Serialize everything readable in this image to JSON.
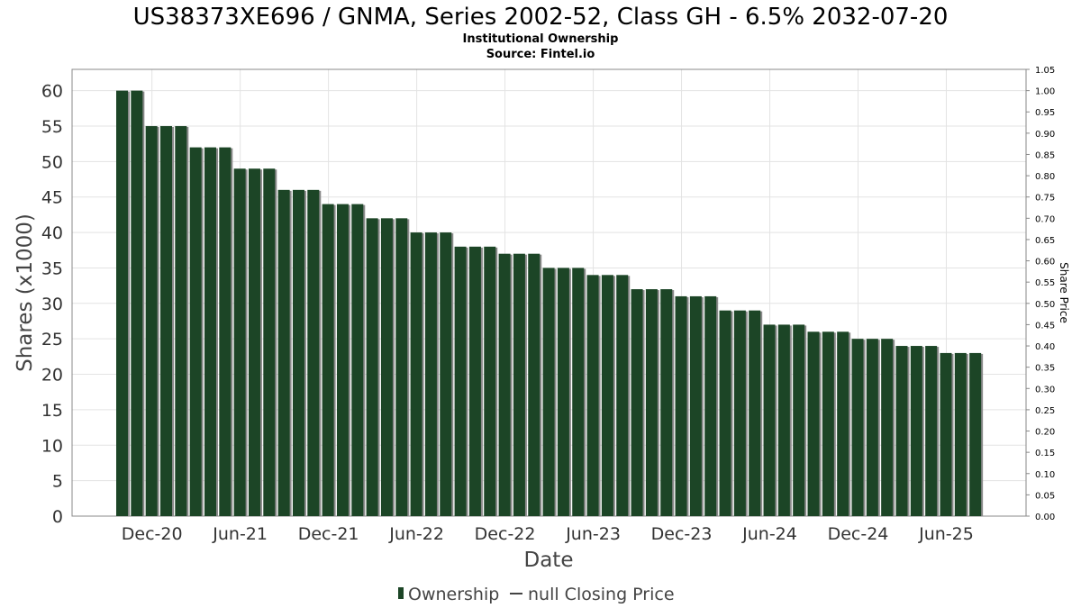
{
  "title": "US38373XE696 / GNMA, Series 2002-52, Class GH - 6.5% 2032-07-20",
  "subtitle": "Institutional Ownership",
  "source": "Source: Fintel.io",
  "colors": {
    "bar": "#1c4526",
    "bar_shadow": "#8a8a8a",
    "grid": "#e3e3e3",
    "frame": "#888888"
  },
  "chart_data": {
    "type": "bar",
    "xlabel": "Date",
    "ylabel": "Shares (x1000)",
    "y2label": "Share Price",
    "ylim": [
      0,
      63
    ],
    "y2lim": [
      0,
      1.05
    ],
    "yticks": [
      0,
      5,
      10,
      15,
      20,
      25,
      30,
      35,
      40,
      45,
      50,
      55,
      60
    ],
    "y2ticks": [
      "0.00",
      "0.05",
      "0.10",
      "0.15",
      "0.20",
      "0.25",
      "0.30",
      "0.35",
      "0.40",
      "0.45",
      "0.50",
      "0.55",
      "0.60",
      "0.65",
      "0.70",
      "0.75",
      "0.80",
      "0.85",
      "0.90",
      "0.95",
      "1.00",
      "1.05"
    ],
    "xtick_labels": [
      "Dec-20",
      "Jun-21",
      "Dec-21",
      "Jun-22",
      "Dec-22",
      "Jun-23",
      "Dec-23",
      "Jun-24",
      "Dec-24",
      "Jun-25"
    ],
    "grid": true,
    "legend_position": "bottom",
    "series": [
      {
        "name": "Ownership",
        "values": [
          60,
          60,
          55,
          55,
          55,
          52,
          52,
          52,
          49,
          49,
          49,
          46,
          46,
          46,
          44,
          44,
          44,
          42,
          42,
          42,
          40,
          40,
          40,
          38,
          38,
          38,
          37,
          37,
          37,
          35,
          35,
          35,
          34,
          34,
          34,
          32,
          32,
          32,
          31,
          31,
          31,
          29,
          29,
          29,
          27,
          27,
          27,
          26,
          26,
          26,
          25,
          25,
          25,
          24,
          24,
          24,
          23,
          23,
          23
        ]
      },
      {
        "name": "null Closing Price",
        "values": []
      }
    ]
  }
}
